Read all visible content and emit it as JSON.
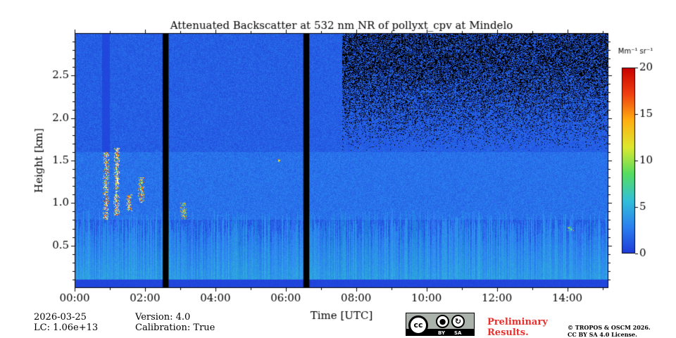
{
  "chart_data": {
    "type": "heatmap",
    "title": "Attenuated Backscatter at 532 nm NR of pollyxt_cpv at Mindelo",
    "xlabel": "Time [UTC]",
    "ylabel": "Height [km]",
    "xlim_hours": [
      0,
      15.17
    ],
    "ylim_km": [
      0.0,
      3.0
    ],
    "x_ticks": [
      {
        "value": 0,
        "label": "00:00"
      },
      {
        "value": 2,
        "label": "02:00"
      },
      {
        "value": 4,
        "label": "04:00"
      },
      {
        "value": 6,
        "label": "06:00"
      },
      {
        "value": 8,
        "label": "08:00"
      },
      {
        "value": 10,
        "label": "10:00"
      },
      {
        "value": 12,
        "label": "12:00"
      },
      {
        "value": 14,
        "label": "14:00"
      }
    ],
    "y_ticks": [
      {
        "value": 0.5,
        "label": "0.5"
      },
      {
        "value": 1.0,
        "label": "1.0"
      },
      {
        "value": 1.5,
        "label": "1.5"
      },
      {
        "value": 2.0,
        "label": "2.0"
      },
      {
        "value": 2.5,
        "label": "2.5"
      }
    ],
    "colorbar": {
      "unit": "Mm⁻¹ sr⁻¹",
      "range": [
        0,
        20
      ],
      "ticks": [
        {
          "value": 0,
          "label": "0"
        },
        {
          "value": 5,
          "label": "5"
        },
        {
          "value": 10,
          "label": "10"
        },
        {
          "value": 15,
          "label": "15"
        },
        {
          "value": 20,
          "label": "20"
        }
      ],
      "colormap": [
        "#1e3ad8",
        "#2b80f0",
        "#33c0d8",
        "#55dd60",
        "#dde830",
        "#ffb010",
        "#f04010",
        "#c80000"
      ]
    },
    "no_data_periods_hours": [
      [
        2.5,
        2.67
      ],
      [
        6.5,
        6.67
      ]
    ],
    "background_value": 1.5,
    "aerosol_layer": {
      "top_km": 0.8,
      "typical_value": 3.5
    },
    "elevated_layer": {
      "bottom_km": 0.8,
      "top_km": 1.6,
      "value": 2.0
    },
    "cloud_events": [
      {
        "time_h": 0.9,
        "bottom_km": 0.8,
        "top_km": 1.6,
        "value": 20
      },
      {
        "time_h": 1.2,
        "bottom_km": 0.85,
        "top_km": 1.65,
        "value": 20
      },
      {
        "time_h": 1.55,
        "bottom_km": 0.9,
        "top_km": 1.1,
        "value": 18
      },
      {
        "time_h": 1.9,
        "bottom_km": 1.0,
        "top_km": 1.3,
        "value": 18
      },
      {
        "time_h": 3.1,
        "bottom_km": 0.8,
        "top_km": 1.0,
        "value": 14
      },
      {
        "time_h": 5.8,
        "bottom_km": 1.48,
        "top_km": 1.52,
        "value": 14
      },
      {
        "time_h": 14.1,
        "bottom_km": 0.67,
        "top_km": 0.72,
        "value": 12
      }
    ],
    "noise_region_from_hours": 7.6,
    "noise_region_from_km": 1.6
  },
  "info": {
    "date": "2026-03-25",
    "lc": "LC: 1.06e+13",
    "version": "Version: 4.0",
    "calibration": "Calibration: True"
  },
  "prelim_line1": "Preliminary",
  "prelim_line2": "Results.",
  "copyright_line1": "© TROPOS & OSCM 2026.",
  "copyright_line2": "CC BY SA 4.0 License.",
  "license_badge": {
    "cc": "cc",
    "by": "BY",
    "sa": "SA"
  }
}
